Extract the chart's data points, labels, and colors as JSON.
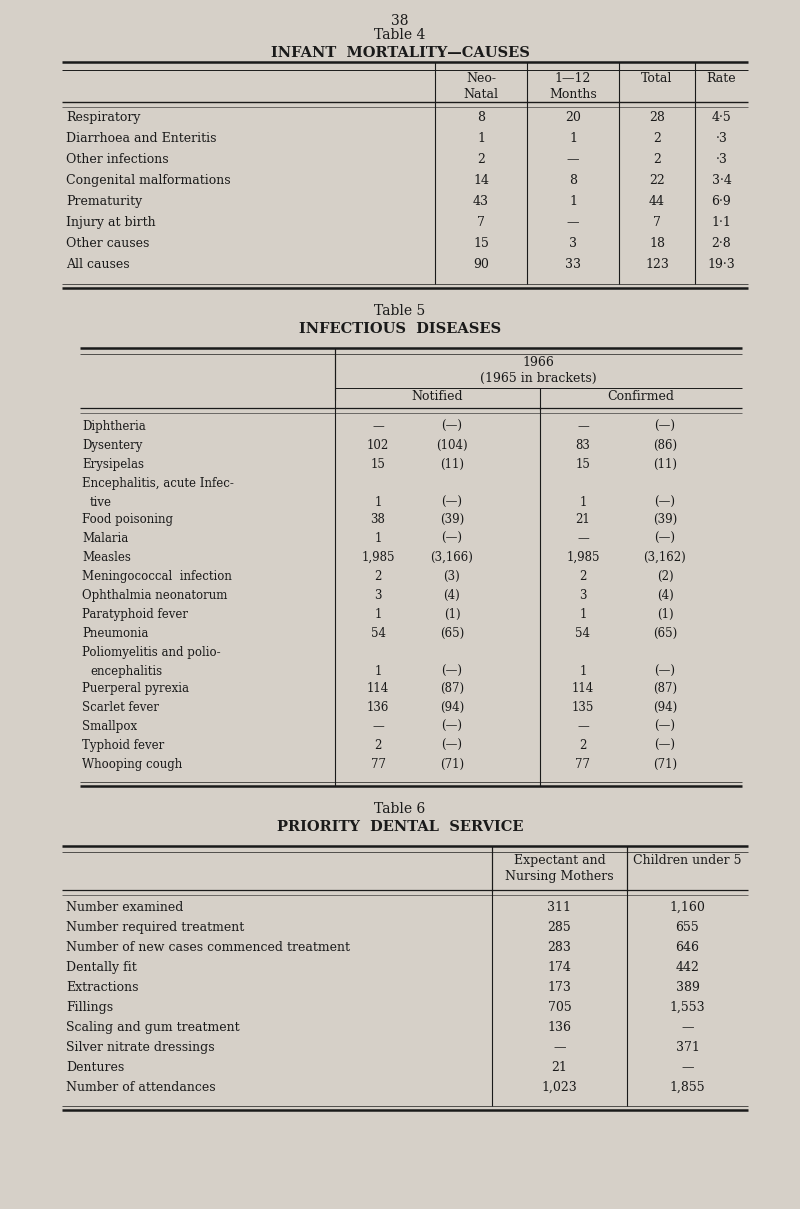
{
  "page_number": "38",
  "bg_color": "#d6d0c8",
  "table4": {
    "title_label": "Table 4",
    "subtitle": "INFANT  MORTALITY—CAUSES",
    "col_headers": [
      "Neo-\nNatal",
      "1—12\nMonths",
      "Total",
      "Rate"
    ],
    "rows": [
      [
        "Respiratory",
        "8",
        "20",
        "28",
        "4·5"
      ],
      [
        "Diarrhoea and Enteritis",
        "1",
        "1",
        "2",
        "·3"
      ],
      [
        "Other infections",
        "2",
        "—",
        "2",
        "·3"
      ],
      [
        "Congenital malformations",
        "14",
        "8",
        "22",
        "3·4"
      ],
      [
        "Prematurity",
        "43",
        "1",
        "44",
        "6·9"
      ],
      [
        "Injury at birth",
        "7",
        "—",
        "7",
        "1·1"
      ],
      [
        "Other causes",
        "15",
        "3",
        "18",
        "2·8"
      ],
      [
        "All causes",
        "90",
        "33",
        "123",
        "19·3"
      ]
    ]
  },
  "table5": {
    "title_label": "Table 5",
    "subtitle": "INFECTIOUS  DISEASES",
    "year_header": "1966\n(1965 in brackets)",
    "sub_headers": [
      "Notified",
      "Confirmed"
    ],
    "rows": [
      [
        "Diphtheria",
        "—",
        "(—)",
        "—",
        "(—)"
      ],
      [
        "Dysentery",
        "102",
        "(104)",
        "83",
        "(86)"
      ],
      [
        "Erysipelas",
        "15",
        "(11)",
        "15",
        "(11)"
      ],
      [
        "Encephalitis, acute Infec-\ntive",
        "1",
        "(—)",
        "1",
        "(—)"
      ],
      [
        "Food poisoning",
        "38",
        "(39)",
        "21",
        "(39)"
      ],
      [
        "Malaria",
        "1",
        "(—)",
        "—",
        "(—)"
      ],
      [
        "Measles",
        "1,985",
        "(3,166)",
        "1,985",
        "(3,162)"
      ],
      [
        "Meningococcal  infection",
        "2",
        "(3)",
        "2",
        "(2)"
      ],
      [
        "Ophthalmia neonatorum",
        "3",
        "(4)",
        "3",
        "(4)"
      ],
      [
        "Paratyphoid fever",
        "1",
        "(1)",
        "1",
        "(1)"
      ],
      [
        "Pneumonia",
        "54",
        "(65)",
        "54",
        "(65)"
      ],
      [
        "Poliomyelitis and polio-\nencephalitis",
        "1",
        "(—)",
        "1",
        "(—)"
      ],
      [
        "Puerperal pyrexia",
        "114",
        "(87)",
        "114",
        "(87)"
      ],
      [
        "Scarlet fever",
        "136",
        "(94)",
        "135",
        "(94)"
      ],
      [
        "Smallpox",
        "—",
        "(—)",
        "—",
        "(—)"
      ],
      [
        "Typhoid fever",
        "2",
        "(—)",
        "2",
        "(—)"
      ],
      [
        "Whooping cough",
        "77",
        "(71)",
        "77",
        "(71)"
      ]
    ]
  },
  "table6": {
    "title_label": "Table 6",
    "subtitle": "PRIORITY  DENTAL  SERVICE",
    "col_headers": [
      "Expectant and\nNursing Mothers",
      "Children under 5"
    ],
    "rows": [
      [
        "Number examined",
        "311",
        "1,160"
      ],
      [
        "Number required treatment",
        "285",
        "655"
      ],
      [
        "Number of new cases commenced treatment",
        "283",
        "646"
      ],
      [
        "Dentally fit",
        "174",
        "442"
      ],
      [
        "Extractions",
        "173",
        "389"
      ],
      [
        "Fillings",
        "705",
        "1,553"
      ],
      [
        "Scaling and gum treatment",
        "136",
        "—"
      ],
      [
        "Silver nitrate dressings",
        "—",
        "371"
      ],
      [
        "Dentures",
        "21",
        "—"
      ],
      [
        "Number of attendances",
        "1,023",
        "1,855"
      ]
    ]
  }
}
